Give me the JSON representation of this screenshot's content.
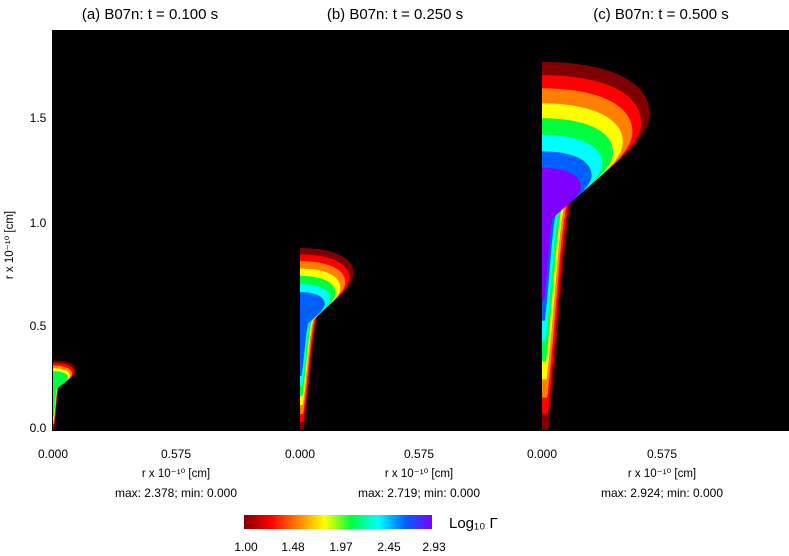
{
  "chart_data": {
    "type": "heatmap",
    "panels": [
      {
        "title": "(a)  B07n: t = 0.100 s",
        "xlabel": "r x 10⁻¹⁰ [cm]",
        "x_ticks": [
          "0.000",
          "0.575"
        ],
        "stats": "max: 2.378; min: 0.000",
        "max": 2.378,
        "min": 0.0,
        "structure": {
          "height": 0.34,
          "head_width": 0.11,
          "neck_width": 0.02,
          "core_value": 2.0
        }
      },
      {
        "title": "(b)  B07n: t = 0.250 s",
        "xlabel": "r x 10⁻¹⁰ [cm]",
        "x_ticks": [
          "0.000",
          "0.575"
        ],
        "stats": "max: 2.719; min: 0.000",
        "max": 2.719,
        "min": 0.0,
        "structure": {
          "height": 0.89,
          "head_width": 0.26,
          "neck_width": 0.06,
          "core_value": 2.7
        }
      },
      {
        "title": "(c)  B07n: t = 0.500 s",
        "xlabel": "r x 10⁻¹⁰ [cm]",
        "x_ticks": [
          "0.000",
          "0.575"
        ],
        "stats": "max: 2.924; min: 0.000",
        "max": 2.924,
        "min": 0.0,
        "structure": {
          "height": 1.8,
          "head_width": 0.52,
          "neck_width": 0.1,
          "core_value": 2.93
        }
      }
    ],
    "ylabel": "r x 10⁻¹⁰ [cm]",
    "y_ticks": [
      "0.0",
      "0.5",
      "1.0",
      "1.5"
    ],
    "y_tick_values": [
      0.0,
      0.5,
      1.0,
      1.5
    ],
    "x_tick_values": [
      0.0,
      0.575
    ],
    "xlim": [
      0.0,
      1.1
    ],
    "ylim": [
      0.0,
      1.9
    ],
    "colorbar": {
      "label": "Log₁₀ Γ",
      "ticks": [
        "1.00",
        "1.48",
        "1.97",
        "2.45",
        "2.93"
      ],
      "tick_values": [
        1.0,
        1.48,
        1.97,
        2.45,
        2.93
      ],
      "range": [
        1.0,
        2.93
      ],
      "colormap": [
        "#7f0000",
        "#ff0000",
        "#ff8000",
        "#ffff00",
        "#00ff40",
        "#00ffff",
        "#0060ff",
        "#8000ff"
      ]
    },
    "background_color": "#000000"
  }
}
